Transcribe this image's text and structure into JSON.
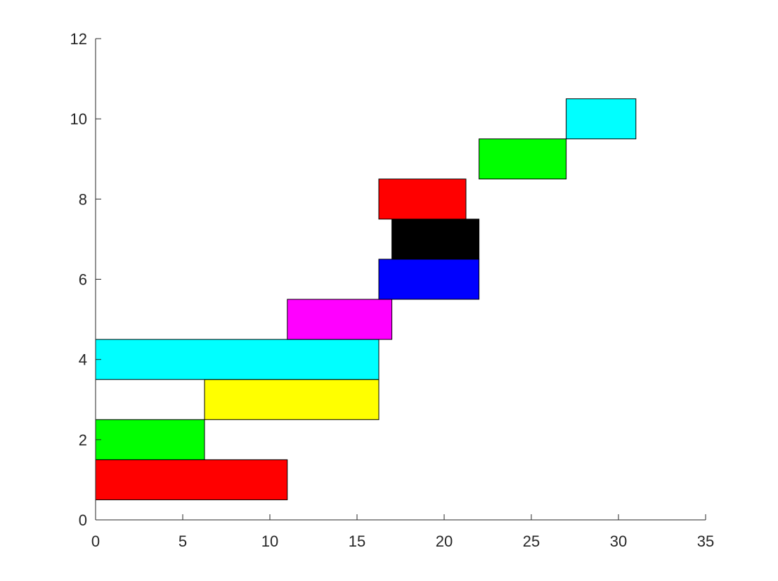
{
  "chart_data": {
    "type": "bar",
    "subtype": "gantt",
    "title": "",
    "xlabel": "",
    "ylabel": "",
    "xlim": [
      0,
      35
    ],
    "ylim": [
      0,
      12
    ],
    "xticks": [
      0,
      5,
      10,
      15,
      20,
      25,
      30,
      35
    ],
    "xtick_labels": [
      "0",
      "5",
      "10",
      "15",
      "20",
      "25",
      "30",
      "35"
    ],
    "yticks": [
      0,
      2,
      4,
      6,
      8,
      10,
      12
    ],
    "ytick_labels": [
      "0",
      "2",
      "4",
      "6",
      "8",
      "10",
      "12"
    ],
    "grid": false,
    "legend": "none",
    "bars": [
      {
        "row": 1,
        "start": 0.0,
        "end": 11.0,
        "color": "#ff0000"
      },
      {
        "row": 2,
        "start": 0.0,
        "end": 6.25,
        "color": "#00ff00"
      },
      {
        "row": 3,
        "start": 6.25,
        "end": 16.25,
        "color": "#ffff00"
      },
      {
        "row": 4,
        "start": 0.0,
        "end": 16.25,
        "color": "#00ffff"
      },
      {
        "row": 5,
        "start": 11.0,
        "end": 17.0,
        "color": "#ff00ff"
      },
      {
        "row": 6,
        "start": 16.25,
        "end": 22.0,
        "color": "#0000ff"
      },
      {
        "row": 7,
        "start": 17.0,
        "end": 22.0,
        "color": "#000000"
      },
      {
        "row": 8,
        "start": 16.25,
        "end": 21.25,
        "color": "#ff0000"
      },
      {
        "row": 9,
        "start": 22.0,
        "end": 27.0,
        "color": "#00ff00"
      },
      {
        "row": 10,
        "start": 27.0,
        "end": 31.0,
        "color": "#00ffff"
      }
    ]
  }
}
